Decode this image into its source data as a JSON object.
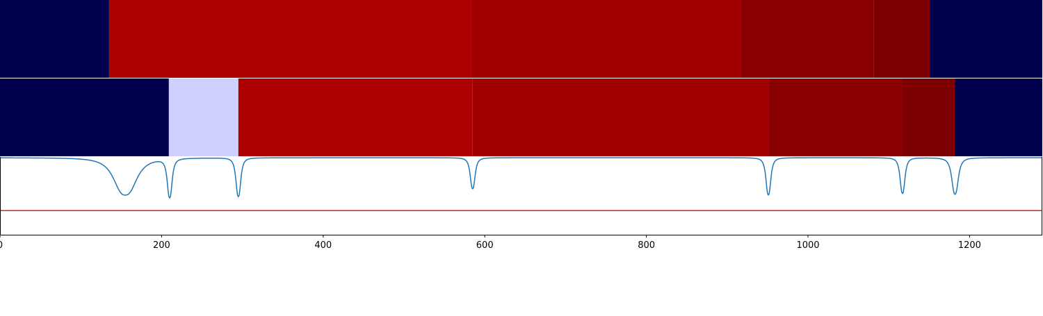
{
  "chart_data": {
    "type": "heatmap",
    "xlim": [
      0,
      1290
    ],
    "x_ticks": [
      0,
      200,
      400,
      600,
      800,
      1000,
      1200
    ],
    "x_tick_labels": [
      "0",
      "200",
      "400",
      "600",
      "800",
      "1000",
      "1200"
    ],
    "title": "",
    "xlabel": "",
    "ylabel": "",
    "grid": false,
    "legend": "none",
    "rows": [
      {
        "segments": [
          {
            "x0": 0,
            "x1": 135,
            "color": "#00004c"
          },
          {
            "x0": 135,
            "x1": 583,
            "color": "#ad0000"
          },
          {
            "x0": 583,
            "x1": 917,
            "color": "#a10000"
          },
          {
            "x0": 917,
            "x1": 1081,
            "color": "#8a0000"
          },
          {
            "x0": 1081,
            "x1": 1151,
            "color": "#7d0000"
          },
          {
            "x0": 1151,
            "x1": 1290,
            "color": "#00004c"
          }
        ]
      },
      {
        "segments": [
          {
            "x0": 0,
            "x1": 209,
            "color": "#00004c"
          },
          {
            "x0": 209,
            "x1": 295,
            "color": "#d0d0ff"
          },
          {
            "x0": 295,
            "x1": 585,
            "color": "#ad0000"
          },
          {
            "x0": 585,
            "x1": 951,
            "color": "#a10000"
          },
          {
            "x0": 951,
            "x1": 1117,
            "color": "#8a0000"
          },
          {
            "x0": 1117,
            "x1": 1182,
            "color": "#7d0000"
          },
          {
            "x0": 1182,
            "x1": 1290,
            "color": "#00004c"
          }
        ]
      }
    ],
    "signal": {
      "color": "#1f77b4",
      "ylim": [
        0,
        1
      ],
      "baseline": 0.99,
      "dips": [
        {
          "center": 155,
          "depth": 0.48,
          "width": 14
        },
        {
          "center": 210,
          "depth": 0.5,
          "width": 3
        },
        {
          "center": 295,
          "depth": 0.5,
          "width": 3
        },
        {
          "center": 585,
          "depth": 0.4,
          "width": 3
        },
        {
          "center": 951,
          "depth": 0.48,
          "width": 3
        },
        {
          "center": 1117,
          "depth": 0.46,
          "width": 3
        },
        {
          "center": 1182,
          "depth": 0.47,
          "width": 4
        }
      ],
      "threshold": {
        "value": 0.31,
        "color": "#e41a1c"
      }
    }
  }
}
